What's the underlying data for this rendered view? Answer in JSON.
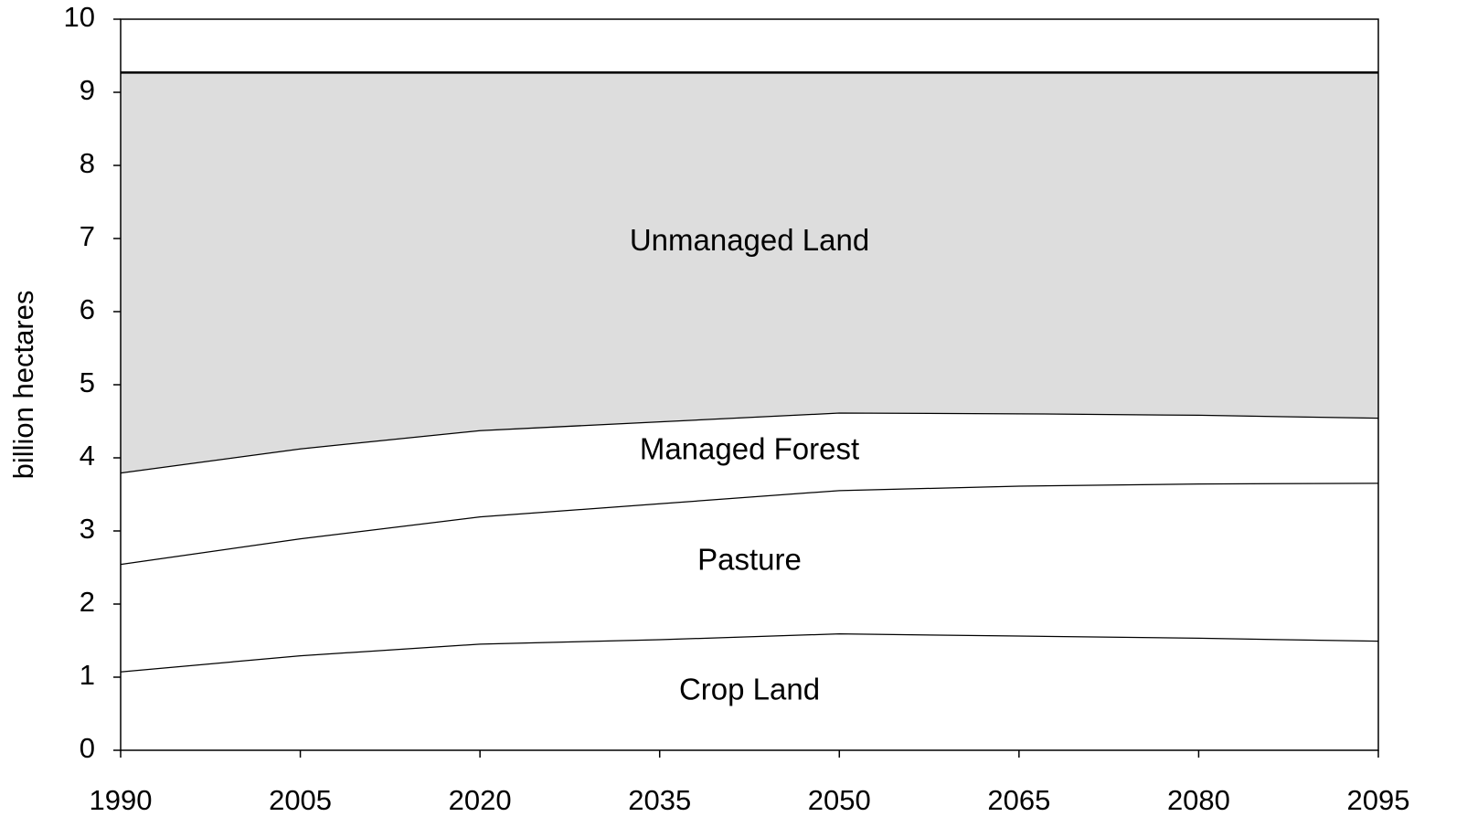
{
  "chart_data": {
    "type": "area",
    "stacked": true,
    "y_label": "billion hectares",
    "x": [
      1990,
      2005,
      2020,
      2035,
      2050,
      2065,
      2080,
      2095
    ],
    "xlim": [
      1990,
      2095
    ],
    "xticks": [
      1990,
      2005,
      2020,
      2035,
      2050,
      2065,
      2080,
      2095
    ],
    "ylim": [
      0,
      10
    ],
    "yticks": [
      0,
      1,
      2,
      3,
      4,
      5,
      6,
      7,
      8,
      9,
      10
    ],
    "grid": false,
    "series": [
      {
        "name": "Crop Land",
        "color": "#ffffff",
        "values": [
          1.08,
          1.3,
          1.46,
          1.52,
          1.6,
          1.57,
          1.54,
          1.5
        ]
      },
      {
        "name": "Pasture",
        "color": "#ffffff",
        "values": [
          1.47,
          1.6,
          1.74,
          1.86,
          1.96,
          2.05,
          2.11,
          2.16
        ]
      },
      {
        "name": "Managed Forest",
        "color": "#ffffff",
        "values": [
          1.25,
          1.23,
          1.18,
          1.12,
          1.06,
          0.99,
          0.94,
          0.89
        ]
      },
      {
        "name": "Unmanaged Land",
        "color": "#dddddd",
        "values": [
          5.47,
          5.14,
          4.89,
          4.77,
          4.65,
          4.66,
          4.68,
          4.72
        ]
      }
    ]
  }
}
